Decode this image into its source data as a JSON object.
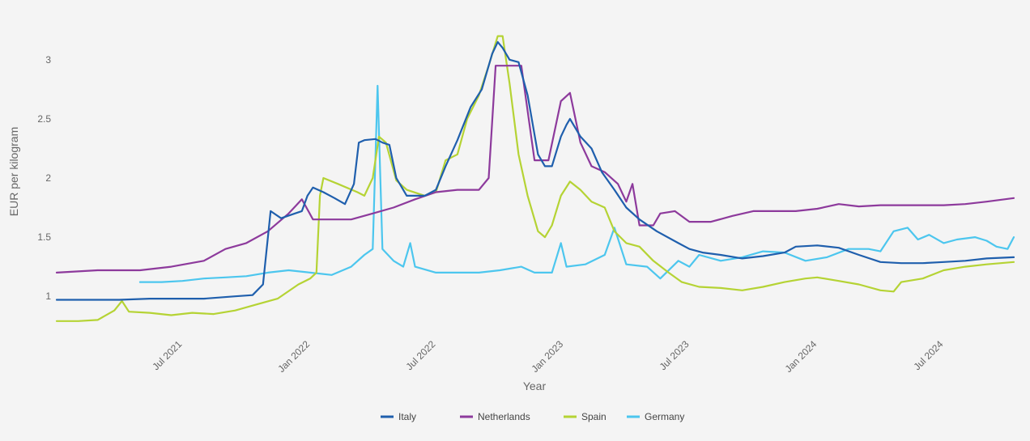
{
  "chart_data": {
    "type": "line",
    "title": "",
    "xlabel": "Year",
    "ylabel": "EUR per kilogram",
    "ylim": [
      0.7,
      3.3
    ],
    "xlim": [
      "2021-01-01",
      "2024-10-10"
    ],
    "yticks": [
      1,
      1.5,
      2,
      2.5,
      3
    ],
    "ytick_labels": [
      "1",
      "1.5",
      "2",
      "2.5",
      "3"
    ],
    "xticks": [
      "2021-07-01",
      "2022-01-01",
      "2022-07-01",
      "2023-01-01",
      "2023-07-01",
      "2024-01-01",
      "2024-07-01"
    ],
    "xtick_labels": [
      "Jul 2021",
      "Jan 2022",
      "Jul 2022",
      "Jan 2023",
      "Jul 2023",
      "Jan 2024",
      "Jul 2024"
    ],
    "grid": false,
    "legend_position": "bottom",
    "series": [
      {
        "name": "Italy",
        "color": "#1f5fad",
        "points": [
          [
            "2021-01-01",
            0.97
          ],
          [
            "2021-02-01",
            0.97
          ],
          [
            "2021-04-01",
            0.97
          ],
          [
            "2021-05-15",
            0.98
          ],
          [
            "2021-07-01",
            0.98
          ],
          [
            "2021-08-01",
            0.98
          ],
          [
            "2021-09-15",
            1.0
          ],
          [
            "2021-10-10",
            1.01
          ],
          [
            "2021-10-25",
            1.1
          ],
          [
            "2021-11-05",
            1.72
          ],
          [
            "2021-11-20",
            1.66
          ],
          [
            "2021-12-10",
            1.7
          ],
          [
            "2021-12-20",
            1.72
          ],
          [
            "2021-12-28",
            1.85
          ],
          [
            "2022-01-05",
            1.92
          ],
          [
            "2022-01-20",
            1.88
          ],
          [
            "2022-02-05",
            1.83
          ],
          [
            "2022-02-20",
            1.78
          ],
          [
            "2022-03-05",
            1.95
          ],
          [
            "2022-03-12",
            2.3
          ],
          [
            "2022-03-20",
            2.32
          ],
          [
            "2022-04-05",
            2.33
          ],
          [
            "2022-04-15",
            2.3
          ],
          [
            "2022-04-25",
            2.28
          ],
          [
            "2022-05-05",
            2.0
          ],
          [
            "2022-05-20",
            1.85
          ],
          [
            "2022-06-15",
            1.85
          ],
          [
            "2022-07-01",
            1.9
          ],
          [
            "2022-07-15",
            2.1
          ],
          [
            "2022-08-01",
            2.32
          ],
          [
            "2022-08-20",
            2.6
          ],
          [
            "2022-09-05",
            2.75
          ],
          [
            "2022-09-20",
            3.05
          ],
          [
            "2022-09-28",
            3.15
          ],
          [
            "2022-10-05",
            3.1
          ],
          [
            "2022-10-15",
            3.0
          ],
          [
            "2022-10-28",
            2.98
          ],
          [
            "2022-11-10",
            2.7
          ],
          [
            "2022-11-25",
            2.2
          ],
          [
            "2022-12-05",
            2.1
          ],
          [
            "2022-12-15",
            2.1
          ],
          [
            "2022-12-28",
            2.35
          ],
          [
            "2023-01-05",
            2.45
          ],
          [
            "2023-01-10",
            2.5
          ],
          [
            "2023-01-25",
            2.35
          ],
          [
            "2023-02-10",
            2.25
          ],
          [
            "2023-02-25",
            2.05
          ],
          [
            "2023-03-15",
            1.9
          ],
          [
            "2023-04-01",
            1.75
          ],
          [
            "2023-04-20",
            1.65
          ],
          [
            "2023-05-15",
            1.55
          ],
          [
            "2023-06-15",
            1.45
          ],
          [
            "2023-07-01",
            1.4
          ],
          [
            "2023-07-20",
            1.37
          ],
          [
            "2023-08-15",
            1.35
          ],
          [
            "2023-09-15",
            1.32
          ],
          [
            "2023-10-15",
            1.34
          ],
          [
            "2023-11-15",
            1.37
          ],
          [
            "2023-12-01",
            1.42
          ],
          [
            "2024-01-01",
            1.43
          ],
          [
            "2024-02-01",
            1.41
          ],
          [
            "2024-03-01",
            1.35
          ],
          [
            "2024-04-01",
            1.29
          ],
          [
            "2024-05-01",
            1.28
          ],
          [
            "2024-06-01",
            1.28
          ],
          [
            "2024-07-01",
            1.29
          ],
          [
            "2024-08-01",
            1.3
          ],
          [
            "2024-09-01",
            1.32
          ],
          [
            "2024-10-10",
            1.33
          ]
        ]
      },
      {
        "name": "Netherlands",
        "color": "#8d3a9c",
        "points": [
          [
            "2021-01-01",
            1.2
          ],
          [
            "2021-03-01",
            1.22
          ],
          [
            "2021-05-01",
            1.22
          ],
          [
            "2021-06-15",
            1.25
          ],
          [
            "2021-08-01",
            1.3
          ],
          [
            "2021-09-01",
            1.4
          ],
          [
            "2021-10-01",
            1.45
          ],
          [
            "2021-11-01",
            1.55
          ],
          [
            "2021-12-01",
            1.7
          ],
          [
            "2021-12-20",
            1.82
          ],
          [
            "2022-01-05",
            1.65
          ],
          [
            "2022-02-01",
            1.65
          ],
          [
            "2022-03-01",
            1.65
          ],
          [
            "2022-04-01",
            1.7
          ],
          [
            "2022-05-01",
            1.75
          ],
          [
            "2022-06-01",
            1.82
          ],
          [
            "2022-07-01",
            1.88
          ],
          [
            "2022-08-01",
            1.9
          ],
          [
            "2022-09-01",
            1.9
          ],
          [
            "2022-09-15",
            2.0
          ],
          [
            "2022-09-25",
            2.95
          ],
          [
            "2022-10-05",
            2.95
          ],
          [
            "2022-10-15",
            2.95
          ],
          [
            "2022-11-01",
            2.95
          ],
          [
            "2022-11-20",
            2.15
          ],
          [
            "2022-12-10",
            2.15
          ],
          [
            "2022-12-28",
            2.65
          ],
          [
            "2023-01-10",
            2.72
          ],
          [
            "2023-01-25",
            2.3
          ],
          [
            "2023-02-10",
            2.1
          ],
          [
            "2023-03-01",
            2.05
          ],
          [
            "2023-03-20",
            1.95
          ],
          [
            "2023-04-01",
            1.8
          ],
          [
            "2023-04-10",
            1.95
          ],
          [
            "2023-04-20",
            1.6
          ],
          [
            "2023-05-10",
            1.6
          ],
          [
            "2023-05-20",
            1.7
          ],
          [
            "2023-06-10",
            1.72
          ],
          [
            "2023-07-01",
            1.63
          ],
          [
            "2023-08-01",
            1.63
          ],
          [
            "2023-09-01",
            1.68
          ],
          [
            "2023-10-01",
            1.72
          ],
          [
            "2023-11-01",
            1.72
          ],
          [
            "2023-12-01",
            1.72
          ],
          [
            "2024-01-01",
            1.74
          ],
          [
            "2024-02-01",
            1.78
          ],
          [
            "2024-03-01",
            1.76
          ],
          [
            "2024-04-01",
            1.77
          ],
          [
            "2024-05-01",
            1.77
          ],
          [
            "2024-07-01",
            1.77
          ],
          [
            "2024-08-01",
            1.78
          ],
          [
            "2024-09-01",
            1.8
          ],
          [
            "2024-10-10",
            1.83
          ]
        ]
      },
      {
        "name": "Spain",
        "color": "#b5d334",
        "points": [
          [
            "2021-01-01",
            0.79
          ],
          [
            "2021-02-01",
            0.79
          ],
          [
            "2021-03-01",
            0.8
          ],
          [
            "2021-03-25",
            0.88
          ],
          [
            "2021-04-05",
            0.96
          ],
          [
            "2021-04-15",
            0.87
          ],
          [
            "2021-05-15",
            0.86
          ],
          [
            "2021-06-15",
            0.84
          ],
          [
            "2021-07-15",
            0.86
          ],
          [
            "2021-08-15",
            0.85
          ],
          [
            "2021-09-15",
            0.88
          ],
          [
            "2021-10-15",
            0.93
          ],
          [
            "2021-11-15",
            0.98
          ],
          [
            "2021-12-15",
            1.1
          ],
          [
            "2022-01-01",
            1.15
          ],
          [
            "2022-01-10",
            1.2
          ],
          [
            "2022-01-15",
            1.85
          ],
          [
            "2022-01-20",
            2.0
          ],
          [
            "2022-02-10",
            1.95
          ],
          [
            "2022-03-10",
            1.88
          ],
          [
            "2022-03-20",
            1.85
          ],
          [
            "2022-04-01",
            2.0
          ],
          [
            "2022-04-10",
            2.35
          ],
          [
            "2022-04-20",
            2.3
          ],
          [
            "2022-05-05",
            1.98
          ],
          [
            "2022-05-20",
            1.9
          ],
          [
            "2022-06-15",
            1.85
          ],
          [
            "2022-07-01",
            1.88
          ],
          [
            "2022-07-15",
            2.15
          ],
          [
            "2022-08-01",
            2.2
          ],
          [
            "2022-08-15",
            2.5
          ],
          [
            "2022-09-01",
            2.7
          ],
          [
            "2022-09-15",
            2.95
          ],
          [
            "2022-09-28",
            3.2
          ],
          [
            "2022-10-05",
            3.2
          ],
          [
            "2022-10-15",
            2.8
          ],
          [
            "2022-10-28",
            2.2
          ],
          [
            "2022-11-10",
            1.85
          ],
          [
            "2022-11-25",
            1.55
          ],
          [
            "2022-12-05",
            1.5
          ],
          [
            "2022-12-15",
            1.6
          ],
          [
            "2022-12-28",
            1.85
          ],
          [
            "2023-01-10",
            1.97
          ],
          [
            "2023-01-25",
            1.9
          ],
          [
            "2023-02-10",
            1.8
          ],
          [
            "2023-03-01",
            1.75
          ],
          [
            "2023-03-15",
            1.55
          ],
          [
            "2023-04-01",
            1.45
          ],
          [
            "2023-04-20",
            1.42
          ],
          [
            "2023-05-10",
            1.3
          ],
          [
            "2023-06-01",
            1.2
          ],
          [
            "2023-06-20",
            1.12
          ],
          [
            "2023-07-15",
            1.08
          ],
          [
            "2023-08-15",
            1.07
          ],
          [
            "2023-09-15",
            1.05
          ],
          [
            "2023-10-15",
            1.08
          ],
          [
            "2023-11-15",
            1.12
          ],
          [
            "2023-12-15",
            1.15
          ],
          [
            "2024-01-01",
            1.16
          ],
          [
            "2024-02-01",
            1.13
          ],
          [
            "2024-03-01",
            1.1
          ],
          [
            "2024-04-01",
            1.05
          ],
          [
            "2024-04-20",
            1.04
          ],
          [
            "2024-05-01",
            1.12
          ],
          [
            "2024-06-01",
            1.15
          ],
          [
            "2024-07-01",
            1.22
          ],
          [
            "2024-08-01",
            1.25
          ],
          [
            "2024-09-01",
            1.27
          ],
          [
            "2024-10-10",
            1.29
          ]
        ]
      },
      {
        "name": "Germany",
        "color": "#4cc6ee",
        "points": [
          [
            "2021-05-01",
            1.12
          ],
          [
            "2021-06-01",
            1.12
          ],
          [
            "2021-07-01",
            1.13
          ],
          [
            "2021-08-01",
            1.15
          ],
          [
            "2021-09-01",
            1.16
          ],
          [
            "2021-10-01",
            1.17
          ],
          [
            "2021-11-01",
            1.2
          ],
          [
            "2021-12-01",
            1.22
          ],
          [
            "2022-01-01",
            1.2
          ],
          [
            "2022-02-01",
            1.18
          ],
          [
            "2022-03-01",
            1.25
          ],
          [
            "2022-03-20",
            1.35
          ],
          [
            "2022-04-01",
            1.4
          ],
          [
            "2022-04-08",
            2.78
          ],
          [
            "2022-04-15",
            1.4
          ],
          [
            "2022-05-01",
            1.3
          ],
          [
            "2022-05-15",
            1.25
          ],
          [
            "2022-05-25",
            1.45
          ],
          [
            "2022-06-01",
            1.25
          ],
          [
            "2022-07-01",
            1.2
          ],
          [
            "2022-08-01",
            1.2
          ],
          [
            "2022-09-01",
            1.2
          ],
          [
            "2022-10-01",
            1.22
          ],
          [
            "2022-11-01",
            1.25
          ],
          [
            "2022-11-20",
            1.2
          ],
          [
            "2022-12-15",
            1.2
          ],
          [
            "2022-12-28",
            1.45
          ],
          [
            "2023-01-05",
            1.25
          ],
          [
            "2023-02-01",
            1.27
          ],
          [
            "2023-03-01",
            1.35
          ],
          [
            "2023-03-15",
            1.58
          ],
          [
            "2023-04-01",
            1.27
          ],
          [
            "2023-05-01",
            1.25
          ],
          [
            "2023-05-20",
            1.15
          ],
          [
            "2023-06-15",
            1.3
          ],
          [
            "2023-07-01",
            1.25
          ],
          [
            "2023-07-15",
            1.35
          ],
          [
            "2023-08-15",
            1.3
          ],
          [
            "2023-09-15",
            1.33
          ],
          [
            "2023-10-15",
            1.38
          ],
          [
            "2023-11-15",
            1.37
          ],
          [
            "2023-12-15",
            1.3
          ],
          [
            "2024-01-15",
            1.33
          ],
          [
            "2024-02-15",
            1.4
          ],
          [
            "2024-03-15",
            1.4
          ],
          [
            "2024-04-01",
            1.38
          ],
          [
            "2024-04-20",
            1.55
          ],
          [
            "2024-05-10",
            1.58
          ],
          [
            "2024-05-25",
            1.48
          ],
          [
            "2024-06-10",
            1.52
          ],
          [
            "2024-07-01",
            1.45
          ],
          [
            "2024-07-20",
            1.48
          ],
          [
            "2024-08-15",
            1.5
          ],
          [
            "2024-09-01",
            1.47
          ],
          [
            "2024-09-15",
            1.42
          ],
          [
            "2024-10-01",
            1.4
          ],
          [
            "2024-10-10",
            1.5
          ]
        ]
      }
    ]
  }
}
